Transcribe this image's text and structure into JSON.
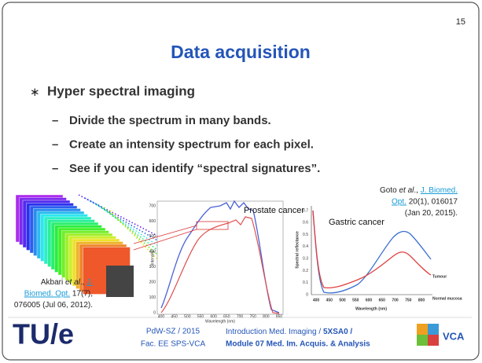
{
  "page_number": "15",
  "title": "Data acquisition",
  "bullet": "Hyper spectral imaging",
  "sub_bullets": [
    "Divide the spectrum in many bands.",
    "Create an intensity spectrum for each pixel.",
    "See if you can identify “spectral signatures”."
  ],
  "prostate_figure": {
    "label": "Prostate cancer",
    "x_label": "Wavelength (nm)",
    "y_label": "Intensity",
    "xticks": [
      "400",
      "450",
      "500",
      "550",
      "600",
      "650",
      "700",
      "750",
      "800",
      "850"
    ],
    "yticks": [
      "0",
      "100",
      "200",
      "300",
      "400",
      "500",
      "600",
      "700"
    ]
  },
  "gastric_figure": {
    "label": "Gastric cancer",
    "x_label": "Wavelength (nm)",
    "y_label": "Spectral reflectance",
    "xticks": [
      "400",
      "450",
      "500",
      "550",
      "600",
      "650",
      "700",
      "750",
      "800"
    ],
    "yticks": [
      "0",
      "0.1",
      "0.2",
      "0.3",
      "0.4",
      "0.5",
      "0.6",
      "0.7"
    ],
    "series_labels": [
      "Tumour",
      "Normal mucosa"
    ]
  },
  "citation_right": {
    "lines": [
      [
        {
          "text": "Goto ",
          "style": "plain"
        },
        {
          "text": "et al",
          "style": "italic"
        },
        {
          "text": "., ",
          "style": "plain"
        },
        {
          "text": "J. Biomed.",
          "style": "link"
        }
      ],
      [
        {
          "text": "Opt.",
          "style": "link"
        },
        {
          "text": " 20(1), 016017",
          "style": "plain"
        }
      ],
      [
        {
          "text": "(Jan 20, 2015).",
          "style": "plain"
        }
      ]
    ]
  },
  "citation_left": {
    "lines": [
      [
        {
          "text": "Akbari ",
          "style": "plain"
        },
        {
          "text": "et al",
          "style": "italic"
        },
        {
          "text": "., ",
          "style": "plain"
        },
        {
          "text": "J.",
          "style": "link"
        }
      ],
      [
        {
          "text": "Biomed. Opt.",
          "style": "link"
        },
        {
          "text": " 17(7),",
          "style": "plain"
        }
      ],
      [
        {
          "text": "076005 (Jul 06, 2012).",
          "style": "plain"
        }
      ]
    ]
  },
  "footer": {
    "logo_left": "TU/e",
    "author": "PdW-SZ / 2015",
    "faculty": "Fac. EE  SPS-VCA",
    "course": "Introduction Med. Imaging / ",
    "course_code": "5XSA0 /",
    "module": "Module 07 Med. Im. Acquis. & Analysis",
    "logo_right": "VCA"
  }
}
